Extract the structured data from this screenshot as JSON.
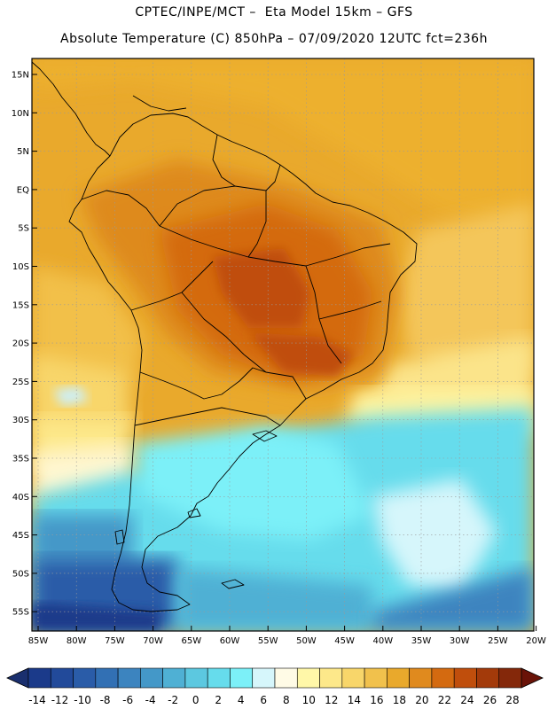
{
  "title_line1": "CPTEC/INPE/MCT –  Eta Model 15km – GFS",
  "title_line2": "Absolute Temperature (C) 850hPa – 07/09/2020 12UTC fct=236h",
  "map": {
    "lat_labels": [
      "15N",
      "10N",
      "5N",
      "EQ",
      "5S",
      "10S",
      "15S",
      "20S",
      "25S",
      "30S",
      "35S",
      "40S",
      "45S",
      "50S",
      "55S"
    ],
    "lon_labels": [
      "85W",
      "80W",
      "75W",
      "70W",
      "65W",
      "60W",
      "55W",
      "50W",
      "45W",
      "40W",
      "35W",
      "30W",
      "25W",
      "20W"
    ]
  },
  "colorbar": {
    "labels": [
      "-14",
      "-12",
      "-10",
      "-8",
      "-6",
      "-4",
      "-2",
      "0",
      "2",
      "4",
      "6",
      "8",
      "10",
      "12",
      "14",
      "16",
      "18",
      "20",
      "22",
      "24",
      "26",
      "28"
    ],
    "colors": [
      "#1b3a8a",
      "#224a9a",
      "#2a5ca8",
      "#3270b4",
      "#3c84bf",
      "#4498c8",
      "#4fb0d4",
      "#5cc8e0",
      "#66dcec",
      "#7cf0f8",
      "#d6f6fb",
      "#fffbe6",
      "#fff7a8",
      "#fde88a",
      "#f8d66a",
      "#f1c14c",
      "#e9a92c",
      "#e08a1e",
      "#d46a10",
      "#c04e0c",
      "#a33a0a",
      "#84280a"
    ],
    "low_color": "#1a2f6e",
    "high_color": "#6a1308"
  }
}
